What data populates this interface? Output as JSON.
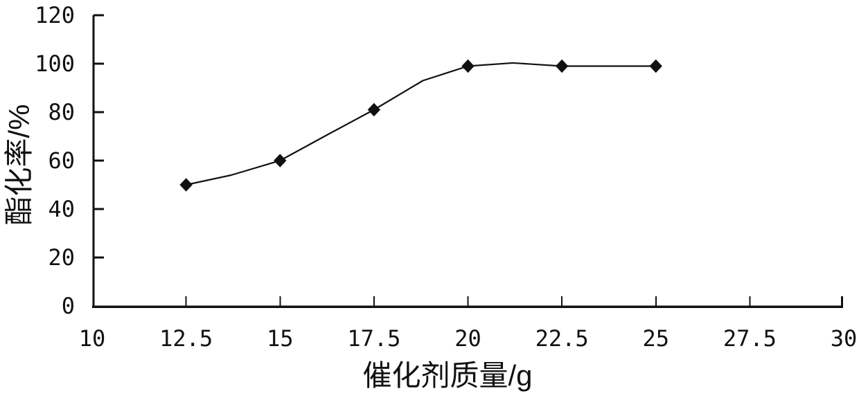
{
  "chart_data": {
    "type": "line",
    "title": "",
    "xlabel": "催化剂质量/g",
    "ylabel": "酯化率/%",
    "x": [
      12.5,
      15,
      17.5,
      20,
      22.5,
      25
    ],
    "y": [
      50,
      60,
      81,
      99,
      99,
      99
    ],
    "xlim": [
      10,
      30
    ],
    "ylim": [
      0,
      120
    ],
    "x_tick_values": [
      10,
      12.5,
      15,
      17.5,
      20,
      22.5,
      25,
      27.5,
      30
    ],
    "x_tick_labels": [
      "10",
      "12.5",
      "15",
      "17.5",
      "20",
      "22.5",
      "25",
      "27.5",
      "30"
    ],
    "y_tick_values": [
      0,
      20,
      40,
      60,
      80,
      100,
      120
    ],
    "y_tick_labels": [
      "0",
      "20",
      "40",
      "60",
      "80",
      "100",
      "120"
    ],
    "curve_path_points": [
      [
        12.5,
        50
      ],
      [
        13.7,
        54
      ],
      [
        15,
        60
      ],
      [
        16.3,
        71
      ],
      [
        17.5,
        81
      ],
      [
        18.8,
        93
      ],
      [
        20,
        99
      ],
      [
        21.2,
        100.3
      ],
      [
        22.5,
        99
      ],
      [
        25,
        99
      ]
    ],
    "marker": "diamond",
    "line_color": "#111111",
    "marker_color": "#111111",
    "axis_color": "#111111",
    "background_color": "#ffffff",
    "grid": false,
    "legend": false
  }
}
